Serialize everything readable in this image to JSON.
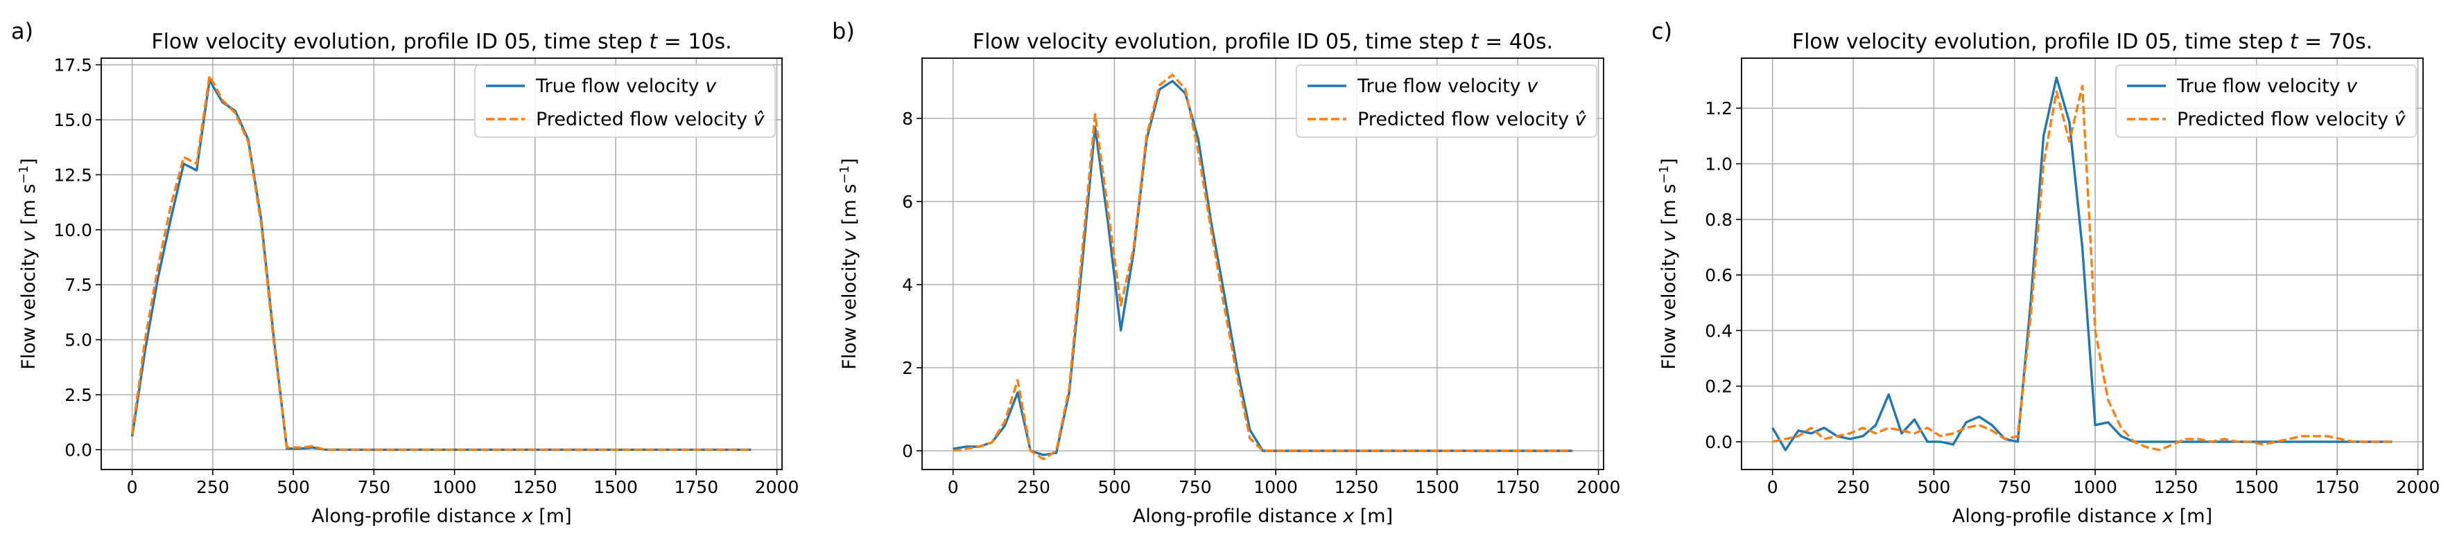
{
  "figure": {
    "panels": [
      {
        "letter": "a)",
        "title": "Flow velocity evolution, profile ID 05, time step",
        "title_math_var": "t",
        "title_math_eq": " = 10s",
        "title_end": ".",
        "ylabel_prefix": "Flow velocity ",
        "ylabel_var": "v",
        "ylabel_unit": " [m s",
        "ylabel_exp": "−1",
        "ylabel_close": "]",
        "xlabel_prefix": "Along-profile distance ",
        "xlabel_var": "x",
        "xlabel_unit": " [m]",
        "legend": [
          {
            "prefix": "True flow velocity ",
            "var": "v",
            "hat": false
          },
          {
            "prefix": "Predicted flow velocity ",
            "var": "v",
            "hat": true
          }
        ]
      },
      {
        "letter": "b)",
        "title": "Flow velocity evolution, profile ID 05, time step",
        "title_math_var": "t",
        "title_math_eq": " = 40s",
        "title_end": ".",
        "ylabel_prefix": "Flow velocity ",
        "ylabel_var": "v",
        "ylabel_unit": " [m s",
        "ylabel_exp": "−1",
        "ylabel_close": "]",
        "xlabel_prefix": "Along-profile distance ",
        "xlabel_var": "x",
        "xlabel_unit": " [m]",
        "legend": [
          {
            "prefix": "True flow velocity ",
            "var": "v",
            "hat": false
          },
          {
            "prefix": "Predicted flow velocity ",
            "var": "v",
            "hat": true
          }
        ]
      },
      {
        "letter": "c)",
        "title": "Flow velocity evolution, profile ID 05, time step",
        "title_math_var": "t",
        "title_math_eq": " = 70s",
        "title_end": ".",
        "ylabel_prefix": "Flow velocity ",
        "ylabel_var": "v",
        "ylabel_unit": " [m s",
        "ylabel_exp": "−1",
        "ylabel_close": "]",
        "xlabel_prefix": "Along-profile distance ",
        "xlabel_var": "x",
        "xlabel_unit": " [m]",
        "legend": [
          {
            "prefix": "True flow velocity ",
            "var": "v",
            "hat": false
          },
          {
            "prefix": "Predicted flow velocity ",
            "var": "v",
            "hat": true
          }
        ]
      }
    ]
  },
  "colors": {
    "true_series": "#1f77b4",
    "pred_series": "#ff7f0e",
    "grid": "#b0b0b0",
    "axes": "#000000",
    "legend_border": "#cccccc"
  },
  "chart_data": [
    {
      "type": "line",
      "grid": true,
      "legend_placement": "upper right",
      "xlim": [
        -96,
        2016
      ],
      "ylim": [
        -0.9,
        17.8
      ],
      "xticks": [
        0,
        250,
        500,
        750,
        1000,
        1250,
        1500,
        1750,
        2000
      ],
      "xtick_labels": [
        "0",
        "250",
        "500",
        "750",
        "1000",
        "1250",
        "1500",
        "1750",
        "2000"
      ],
      "yticks": [
        0,
        2.5,
        5,
        7.5,
        10,
        12.5,
        15,
        17.5
      ],
      "ytick_labels": [
        "0.0",
        "2.5",
        "5.0",
        "7.5",
        "10.0",
        "12.5",
        "15.0",
        "17.5"
      ],
      "series": [
        {
          "name": "True flow velocity v",
          "style": "solid",
          "x": [
            0,
            40,
            80,
            120,
            160,
            200,
            240,
            280,
            320,
            360,
            400,
            440,
            480,
            520,
            560,
            600,
            700,
            800,
            900,
            1000,
            1200,
            1400,
            1600,
            1800,
            1920
          ],
          "y": [
            0.6,
            4.5,
            7.8,
            10.5,
            13.0,
            12.7,
            16.8,
            15.8,
            15.4,
            14.1,
            10.5,
            5.0,
            0.05,
            0.05,
            0.1,
            0.0,
            0.0,
            0.0,
            0.0,
            0.0,
            0.0,
            0.0,
            0.0,
            0.0,
            0.0
          ]
        },
        {
          "name": "Predicted flow velocity v̂",
          "style": "dashed",
          "x": [
            0,
            40,
            80,
            120,
            160,
            200,
            240,
            280,
            320,
            360,
            400,
            440,
            480,
            520,
            560,
            600,
            700,
            800,
            900,
            1000,
            1200,
            1400,
            1600,
            1800,
            1920
          ],
          "y": [
            0.7,
            5.0,
            8.3,
            11.1,
            13.3,
            13.0,
            17.0,
            15.9,
            15.3,
            14.0,
            10.3,
            4.8,
            0.1,
            0.1,
            0.15,
            0.0,
            0.0,
            0.0,
            0.0,
            0.0,
            0.0,
            0.0,
            0.0,
            0.0,
            0.0
          ]
        }
      ]
    },
    {
      "type": "line",
      "grid": true,
      "legend_placement": "upper right",
      "xlim": [
        -96,
        2016
      ],
      "ylim": [
        -0.45,
        9.45
      ],
      "xticks": [
        0,
        250,
        500,
        750,
        1000,
        1250,
        1500,
        1750,
        2000
      ],
      "xtick_labels": [
        "0",
        "250",
        "500",
        "750",
        "1000",
        "1250",
        "1500",
        "1750",
        "2000"
      ],
      "yticks": [
        0,
        2,
        4,
        6,
        8
      ],
      "ytick_labels": [
        "0",
        "2",
        "4",
        "6",
        "8"
      ],
      "series": [
        {
          "name": "True flow velocity v",
          "style": "solid",
          "x": [
            0,
            40,
            80,
            120,
            160,
            200,
            240,
            280,
            320,
            360,
            400,
            440,
            480,
            520,
            560,
            600,
            640,
            680,
            720,
            760,
            800,
            840,
            880,
            920,
            960,
            1000,
            1100,
            1300,
            1500,
            1700,
            1920
          ],
          "y": [
            0.05,
            0.1,
            0.1,
            0.2,
            0.6,
            1.4,
            0.0,
            -0.1,
            -0.05,
            1.4,
            4.5,
            7.8,
            5.5,
            2.9,
            4.8,
            7.5,
            8.7,
            8.9,
            8.6,
            7.5,
            5.5,
            3.8,
            2.0,
            0.5,
            0.0,
            0.0,
            0.0,
            0.0,
            0.0,
            0.0,
            0.0
          ]
        },
        {
          "name": "Predicted flow velocity v̂",
          "style": "dashed",
          "x": [
            0,
            40,
            80,
            120,
            160,
            200,
            240,
            280,
            320,
            360,
            400,
            440,
            480,
            520,
            560,
            600,
            640,
            680,
            720,
            760,
            800,
            840,
            880,
            920,
            960,
            1000,
            1100,
            1300,
            1500,
            1700,
            1920
          ],
          "y": [
            0.0,
            0.05,
            0.1,
            0.2,
            0.7,
            1.7,
            0.0,
            -0.2,
            0.0,
            1.5,
            4.8,
            8.1,
            5.8,
            3.5,
            4.9,
            7.6,
            8.8,
            9.05,
            8.7,
            7.2,
            5.3,
            3.5,
            1.8,
            0.3,
            0.0,
            0.0,
            0.0,
            0.0,
            0.0,
            0.0,
            0.0
          ]
        }
      ]
    },
    {
      "type": "line",
      "grid": true,
      "legend_placement": "upper right",
      "xlim": [
        -96,
        2016
      ],
      "ylim": [
        -0.1,
        1.38
      ],
      "xticks": [
        0,
        250,
        500,
        750,
        1000,
        1250,
        1500,
        1750,
        2000
      ],
      "xtick_labels": [
        "0",
        "250",
        "500",
        "750",
        "1000",
        "1250",
        "1500",
        "1750",
        "2000"
      ],
      "yticks": [
        0,
        0.2,
        0.4,
        0.6,
        0.8,
        1.0,
        1.2
      ],
      "ytick_labels": [
        "0.0",
        "0.2",
        "0.4",
        "0.6",
        "0.8",
        "1.0",
        "1.2"
      ],
      "series": [
        {
          "name": "True flow velocity v",
          "style": "solid",
          "x": [
            0,
            40,
            80,
            120,
            160,
            200,
            240,
            280,
            320,
            360,
            400,
            440,
            480,
            520,
            560,
            600,
            640,
            680,
            720,
            760,
            800,
            840,
            880,
            920,
            960,
            1000,
            1040,
            1080,
            1120,
            1200,
            1400,
            1600,
            1800,
            1920
          ],
          "y": [
            0.05,
            -0.03,
            0.04,
            0.03,
            0.05,
            0.02,
            0.01,
            0.02,
            0.06,
            0.17,
            0.03,
            0.08,
            0.0,
            0.0,
            -0.01,
            0.07,
            0.09,
            0.06,
            0.01,
            0.0,
            0.5,
            1.1,
            1.31,
            1.15,
            0.7,
            0.06,
            0.07,
            0.02,
            0.0,
            0.0,
            0.0,
            0.0,
            0.0,
            0.0
          ]
        },
        {
          "name": "Predicted flow velocity v̂",
          "style": "dashed",
          "x": [
            0,
            40,
            80,
            120,
            160,
            200,
            240,
            280,
            320,
            360,
            400,
            440,
            480,
            520,
            560,
            600,
            640,
            680,
            720,
            760,
            800,
            840,
            880,
            920,
            960,
            1000,
            1040,
            1080,
            1120,
            1160,
            1200,
            1240,
            1280,
            1320,
            1360,
            1400,
            1440,
            1480,
            1520,
            1560,
            1600,
            1640,
            1680,
            1720,
            1760,
            1800,
            1840,
            1880,
            1920
          ],
          "y": [
            0.0,
            0.01,
            0.02,
            0.05,
            0.01,
            0.02,
            0.03,
            0.05,
            0.03,
            0.05,
            0.04,
            0.03,
            0.05,
            0.02,
            0.03,
            0.05,
            0.06,
            0.04,
            0.01,
            0.02,
            0.45,
            1.0,
            1.26,
            1.08,
            1.28,
            0.4,
            0.15,
            0.05,
            0.0,
            -0.02,
            -0.03,
            -0.01,
            0.01,
            0.01,
            0.0,
            0.01,
            0.0,
            0.0,
            -0.01,
            0.0,
            0.01,
            0.02,
            0.02,
            0.02,
            0.01,
            0.0,
            0.0,
            0.0,
            0.0
          ]
        }
      ]
    }
  ]
}
